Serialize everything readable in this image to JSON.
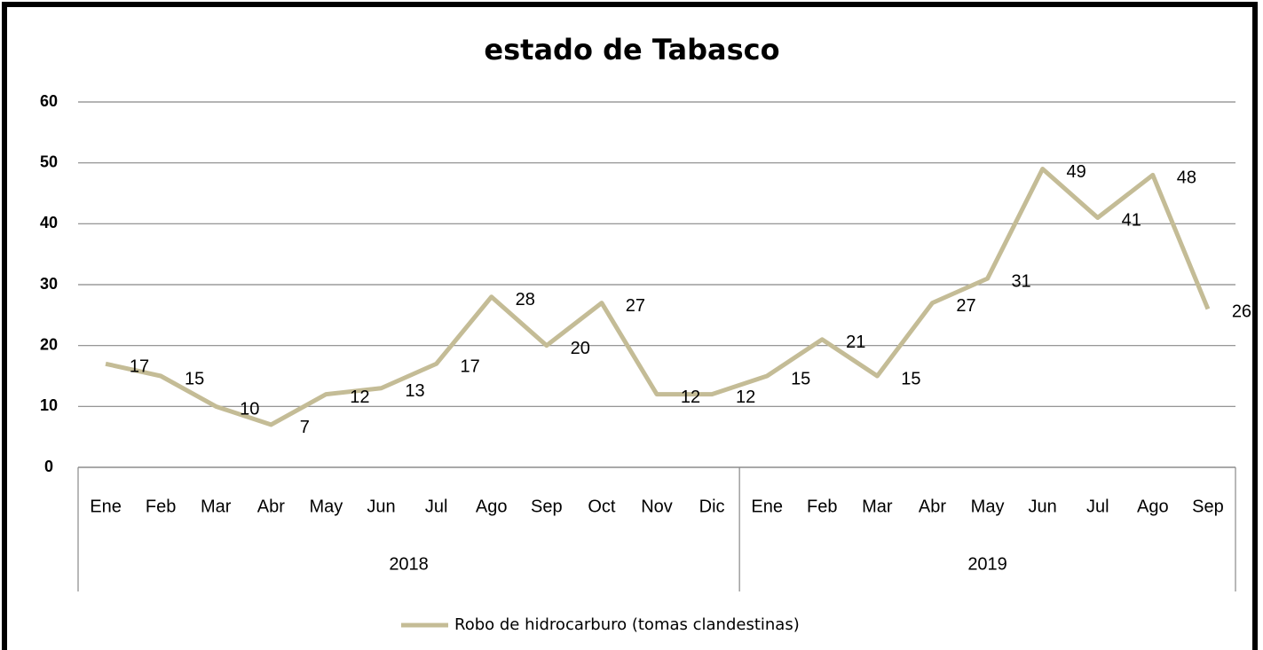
{
  "chart_data": {
    "type": "line",
    "title": "estado de Tabasco",
    "groups": [
      {
        "label": "2018",
        "categories": [
          "Ene",
          "Feb",
          "Mar",
          "Abr",
          "May",
          "Jun",
          "Jul",
          "Ago",
          "Sep",
          "Oct",
          "Nov",
          "Dic"
        ]
      },
      {
        "label": "2019",
        "categories": [
          "Ene",
          "Feb",
          "Mar",
          "Abr",
          "May",
          "Jun",
          "Jul",
          "Ago",
          "Sep"
        ]
      }
    ],
    "series": [
      {
        "name": "Robo de hidrocarburo (tomas clandestinas)",
        "color": "#c4bc96",
        "values": [
          17,
          15,
          10,
          7,
          12,
          13,
          17,
          28,
          20,
          27,
          12,
          12,
          15,
          21,
          15,
          27,
          31,
          49,
          41,
          48,
          26
        ]
      }
    ],
    "ylim": [
      0,
      60
    ],
    "yticks": [
      0,
      10,
      20,
      30,
      40,
      50,
      60
    ],
    "grid": true,
    "legend": "bottom"
  }
}
